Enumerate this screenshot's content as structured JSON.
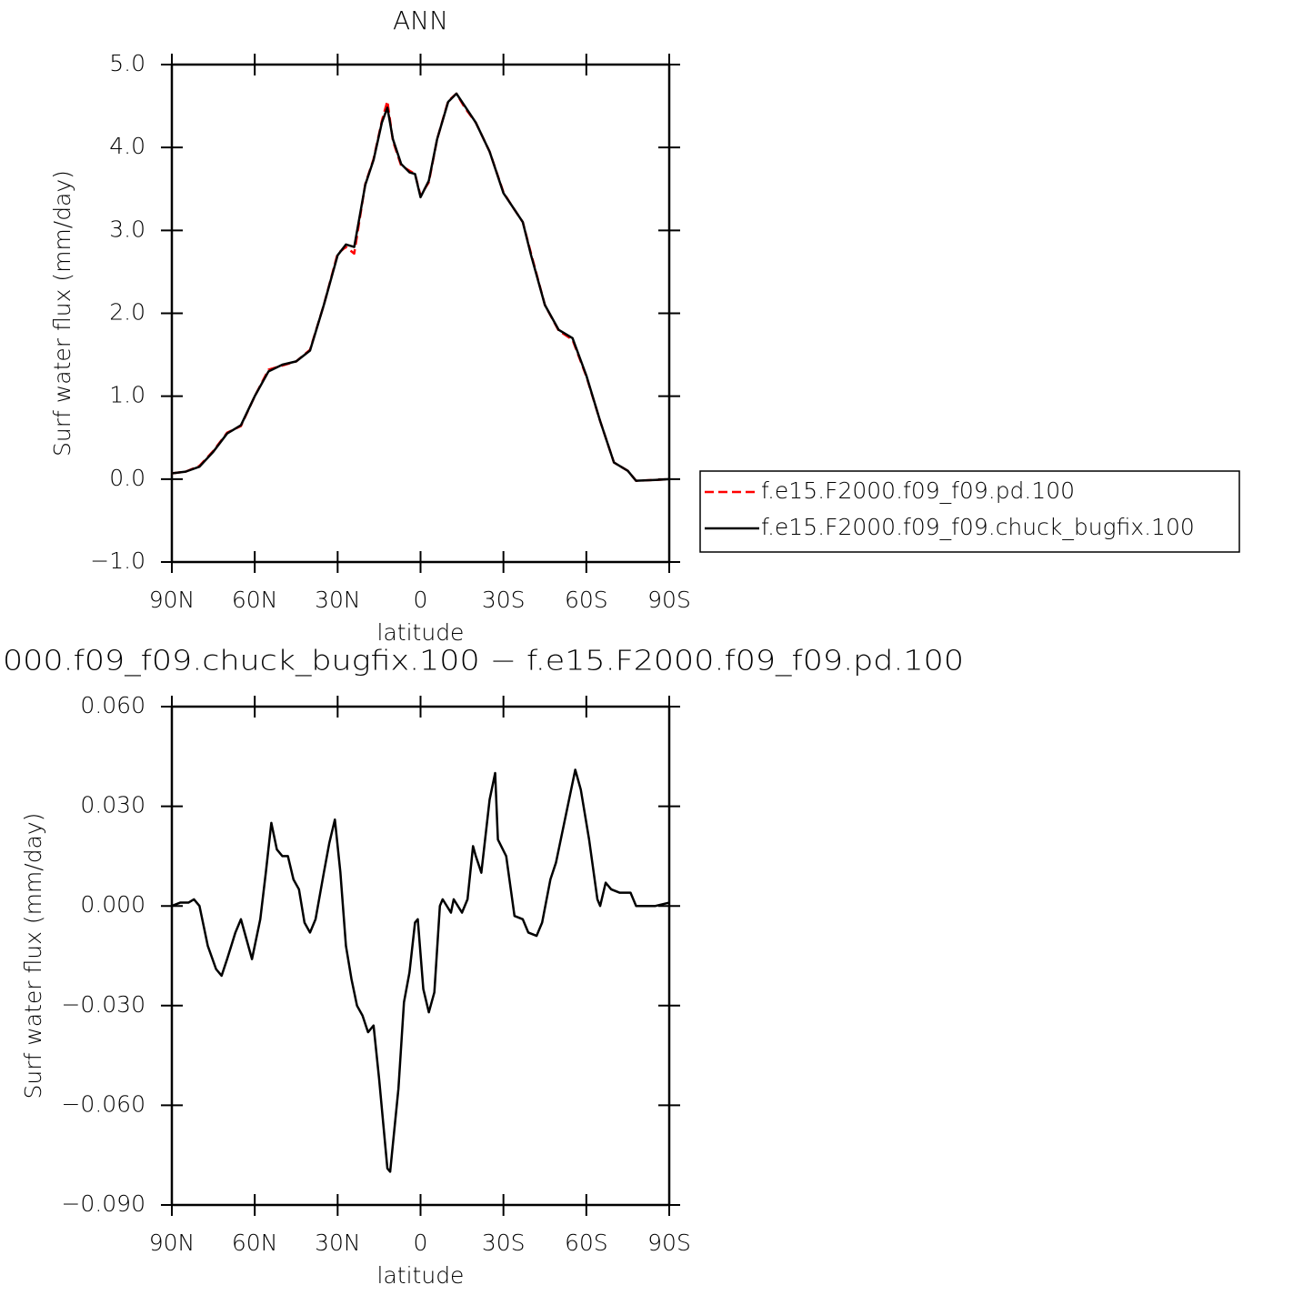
{
  "chart_data": [
    {
      "type": "line",
      "title": "ANN",
      "x_label": "latitude",
      "y_label": "Surf water flux (mm/day)",
      "x": [
        90,
        85,
        80,
        75,
        70,
        65,
        60,
        55,
        50,
        45,
        40,
        35,
        30,
        27,
        24,
        20,
        17,
        14,
        12,
        10,
        7,
        4,
        2,
        0,
        -3,
        -6,
        -10,
        -13,
        -16,
        -20,
        -25,
        -30,
        -33,
        -37,
        -40,
        -45,
        -50,
        -55,
        -60,
        -65,
        -70,
        -75,
        -78,
        -85,
        -90
      ],
      "series": [
        {
          "name": "f.e15.F2000.f09_f09.pd.100",
          "color": "#ff0000",
          "dashed": true,
          "values": [
            0.07,
            0.09,
            0.16,
            0.34,
            0.56,
            0.64,
            1.0,
            1.32,
            1.37,
            1.42,
            1.56,
            2.1,
            2.72,
            2.8,
            2.72,
            3.56,
            3.86,
            4.32,
            4.56,
            4.08,
            3.78,
            3.72,
            3.68,
            3.42,
            3.58,
            4.1,
            4.56,
            4.65,
            4.48,
            4.3,
            3.95,
            3.46,
            3.3,
            3.1,
            2.72,
            2.1,
            1.79,
            1.68,
            1.24,
            0.7,
            0.2,
            0.1,
            -0.02,
            -0.01,
            0.0
          ]
        },
        {
          "name": "f.e15.F2000.f09_f09.chuck_bugfix.100",
          "color": "#000000",
          "dashed": false,
          "values": [
            0.07,
            0.09,
            0.15,
            0.33,
            0.55,
            0.65,
            1.0,
            1.3,
            1.38,
            1.42,
            1.55,
            2.1,
            2.7,
            2.83,
            2.8,
            3.55,
            3.85,
            4.3,
            4.48,
            4.1,
            3.8,
            3.7,
            3.68,
            3.4,
            3.6,
            4.1,
            4.55,
            4.65,
            4.5,
            4.3,
            3.95,
            3.45,
            3.3,
            3.1,
            2.7,
            2.1,
            1.8,
            1.7,
            1.25,
            0.7,
            0.2,
            0.1,
            -0.02,
            -0.01,
            0.0
          ]
        }
      ],
      "xlim": [
        90,
        -90
      ],
      "xticks": [
        {
          "value": 90,
          "label": "90N"
        },
        {
          "value": 60,
          "label": "60N"
        },
        {
          "value": 30,
          "label": "30N"
        },
        0,
        {
          "value": -30,
          "label": "30S"
        },
        {
          "value": -60,
          "label": "60S"
        },
        {
          "value": -90,
          "label": "90S"
        }
      ],
      "ylim": [
        -1,
        5
      ],
      "yticks": [
        {
          "value": -1,
          "label": "−1.0"
        },
        {
          "value": 0,
          "label": "0.0"
        },
        {
          "value": 1,
          "label": "1.0"
        },
        {
          "value": 2,
          "label": "2.0"
        },
        {
          "value": 3,
          "label": "3.0"
        },
        {
          "value": 4,
          "label": "4.0"
        },
        {
          "value": 5,
          "label": "5.0"
        }
      ],
      "legend": "right"
    },
    {
      "type": "line",
      "title": "000.f09_f09.chuck_bugfix.100 − f.e15.F2000.f09_f09.pd.100",
      "x_label": "latitude",
      "y_label": "Surf water flux (mm/day)",
      "x": [
        90,
        87,
        84,
        82,
        80,
        77,
        74,
        72,
        70,
        67,
        65,
        63,
        61,
        58,
        56,
        54,
        52,
        50,
        48,
        46,
        44,
        42,
        40,
        38,
        35,
        33,
        31,
        29,
        27,
        25,
        23,
        21,
        19,
        17,
        15,
        12,
        11,
        8,
        6,
        4,
        2,
        1,
        -1,
        -3,
        -5,
        -7,
        -8,
        -11,
        -12,
        -15,
        -17,
        -19,
        -20,
        -22,
        -25,
        -27,
        -28,
        -31,
        -34,
        -37,
        -39,
        -42,
        -44,
        -47,
        -49,
        -52,
        -55,
        -56,
        -58,
        -61,
        -64,
        -65,
        -67,
        -69,
        -72,
        -74,
        -76,
        -78,
        -85,
        -90
      ],
      "values": [
        0,
        0.001,
        0.001,
        0.002,
        0,
        -0.012,
        -0.019,
        -0.021,
        -0.016,
        -0.008,
        -0.004,
        -0.01,
        -0.016,
        -0.004,
        0.01,
        0.025,
        0.017,
        0.015,
        0.015,
        0.008,
        0.005,
        -0.005,
        -0.008,
        -0.004,
        0.01,
        0.019,
        0.026,
        0.01,
        -0.012,
        -0.022,
        -0.03,
        -0.033,
        -0.038,
        -0.036,
        -0.052,
        -0.079,
        -0.08,
        -0.055,
        -0.029,
        -0.02,
        -0.005,
        -0.004,
        -0.025,
        -0.032,
        -0.026,
        0.0,
        0.002,
        -0.002,
        0.002,
        -0.002,
        0.002,
        0.018,
        0.015,
        0.01,
        0.032,
        0.04,
        0.02,
        0.015,
        -0.003,
        -0.004,
        -0.008,
        -0.009,
        -0.005,
        0.008,
        0.013,
        0.025,
        0.037,
        0.041,
        0.035,
        0.02,
        0.002,
        0.0,
        0.007,
        0.005,
        0.004,
        0.004,
        0.004,
        0.0,
        0.0,
        0.001
      ],
      "color": "#000000",
      "xlim": [
        90,
        -90
      ],
      "xticks": [
        {
          "value": 90,
          "label": "90N"
        },
        {
          "value": 60,
          "label": "60N"
        },
        {
          "value": 30,
          "label": "30N"
        },
        0,
        {
          "value": -30,
          "label": "30S"
        },
        {
          "value": -60,
          "label": "60S"
        },
        {
          "value": -90,
          "label": "90S"
        }
      ],
      "ylim": [
        -0.09,
        0.06
      ],
      "yticks": [
        {
          "value": -0.09,
          "label": "−0.090"
        },
        {
          "value": -0.06,
          "label": "−0.060"
        },
        {
          "value": -0.03,
          "label": "−0.030"
        },
        {
          "value": 0,
          "label": "0.000"
        },
        {
          "value": 0.03,
          "label": "0.030"
        },
        {
          "value": 0.06,
          "label": "0.060"
        }
      ]
    }
  ]
}
